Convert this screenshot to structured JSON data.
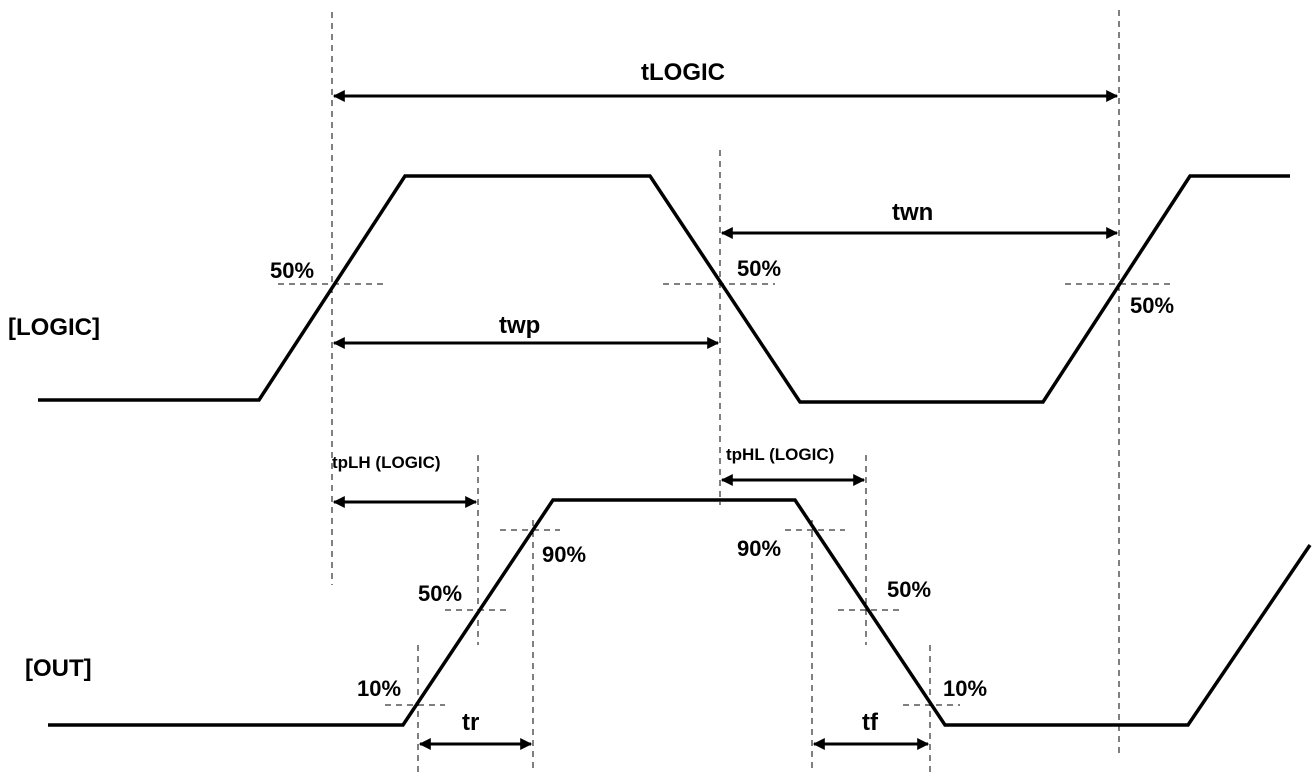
{
  "signals": {
    "logic": "[LOGIC]",
    "out": "[OUT]"
  },
  "timings": {
    "tlogic": "tLOGIC",
    "twn": "twn",
    "twp": "twp",
    "tplh": "tpLH (LOGIC)",
    "tphl": "tpHL (LOGIC)",
    "tr": "tr",
    "tf": "tf"
  },
  "levels": {
    "logic_rise_50": "50%",
    "logic_fall_50": "50%",
    "logic_rise2_50": "50%",
    "out_rise_90": "90%",
    "out_rise_50": "50%",
    "out_rise_10": "10%",
    "out_fall_90": "90%",
    "out_fall_50": "50%",
    "out_fall_10": "10%"
  }
}
